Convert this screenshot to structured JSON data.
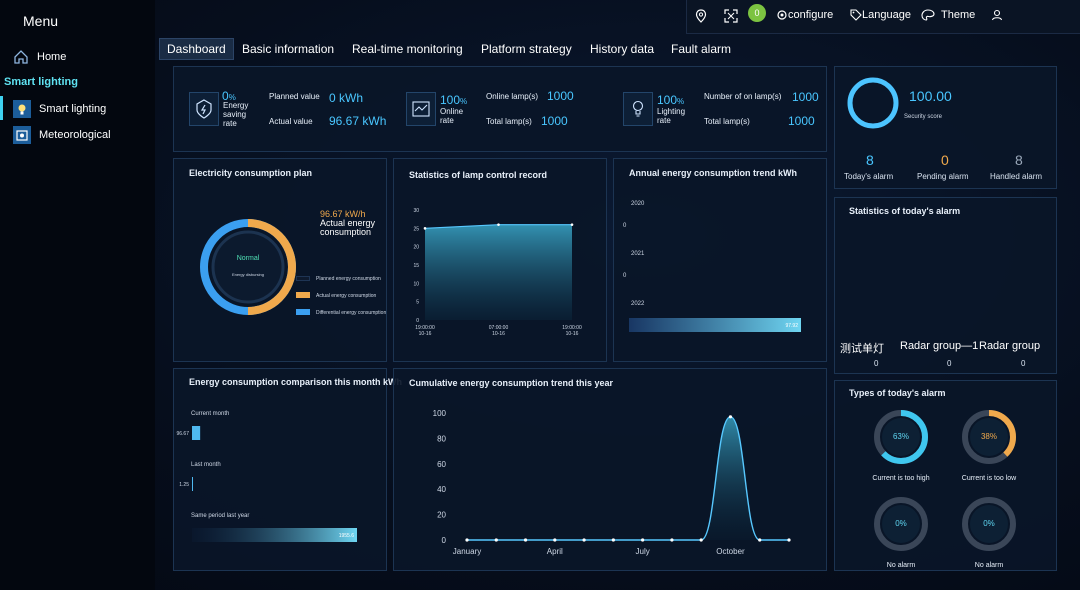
{
  "sidebar": {
    "title": "Menu",
    "home": "Home",
    "group": "Smart lighting",
    "items": [
      {
        "label": "Smart lighting"
      },
      {
        "label": "Meteorological"
      }
    ]
  },
  "topbar": {
    "badge": "0",
    "configure": "configure",
    "language": "Language",
    "theme": "Theme"
  },
  "tabs": [
    "Dashboard",
    "Basic information",
    "Real-time monitoring",
    "Platform strategy",
    "History data",
    "Fault alarm"
  ],
  "stats": {
    "energy": {
      "value": "0",
      "unit": "%",
      "label1": "Energy",
      "label2": "saving",
      "label3": "rate",
      "planned_label": "Planned value",
      "planned_value": "0 kWh",
      "actual_label": "Actual value",
      "actual_value": "96.67 kWh"
    },
    "online": {
      "value": "100",
      "unit": "%",
      "label1": "Online",
      "label2": "rate",
      "online_label": "Online lamp(s)",
      "online_value": "1000",
      "total_label": "Total lamp(s)",
      "total_value": "1000"
    },
    "lighting": {
      "value": "100",
      "unit": "%",
      "label1": "Lighting",
      "label2": "rate",
      "on_label": "Number of on lamp(s)",
      "on_value": "1000",
      "total_label": "Total lamp(s)",
      "total_value": "1000"
    }
  },
  "security": {
    "score": "100.00",
    "label": "Security score",
    "today_value": "8",
    "today_label": "Today's alarm",
    "pending_value": "0",
    "pending_label": "Pending alarm",
    "handled_value": "8",
    "handled_label": "Handled alarm"
  },
  "plan": {
    "title": "Electricity consumption plan",
    "value": "96.67 kW/h",
    "value_label1": "Actual energy",
    "value_label2": "consumption",
    "center_status": "Normal",
    "center_sub": "Energy disbursing",
    "legend": [
      "Planned energy consumption",
      "Actual energy consumption",
      "Differential energy consumption"
    ],
    "colors": {
      "planned": "#0e1a2e",
      "actual": "#f0a94c",
      "diff": "#3b9ff0"
    }
  },
  "lamp_record": {
    "title": "Statistics of lamp control record"
  },
  "annual": {
    "title": "Annual energy consumption trend kWh",
    "rows": [
      {
        "year": "2020",
        "value": "0"
      },
      {
        "year": "2021",
        "value": "0"
      },
      {
        "year": "2022",
        "value": "97.92"
      }
    ]
  },
  "alarm_stats": {
    "title": "Statistics of today's alarm",
    "groups": [
      {
        "name": "测试单灯",
        "count": "0"
      },
      {
        "name": "Radar group—1",
        "count": "0"
      },
      {
        "name": "Radar group",
        "count": "0"
      }
    ]
  },
  "comparison": {
    "title": "Energy consumption comparison this month kWh",
    "rows": [
      {
        "label": "Current month",
        "value": "96.67"
      },
      {
        "label": "Last month",
        "value": "1.25"
      },
      {
        "label": "Same period last year",
        "value": "1955.6"
      }
    ]
  },
  "cumulative": {
    "title": "Cumulative energy consumption trend this year"
  },
  "alarm_types": {
    "title": "Types of today's alarm",
    "items": [
      {
        "pct": "63%",
        "label": "Current is too high",
        "fraction": 0.63,
        "color": "#3fc7ef"
      },
      {
        "pct": "38%",
        "label": "Current is too low",
        "fraction": 0.38,
        "color": "#f0a94c"
      },
      {
        "pct": "0%",
        "label": "No alarm",
        "fraction": 0,
        "color": "#3fc7ef"
      },
      {
        "pct": "0%",
        "label": "No alarm",
        "fraction": 0,
        "color": "#3fc7ef"
      }
    ]
  },
  "chart_data": [
    {
      "type": "area",
      "title": "Statistics of lamp control record",
      "x": [
        "19:00:00\n10-16",
        "07:00:00\n10-16",
        "19:00:00\n10-16"
      ],
      "y_ticks": [
        0,
        5,
        10,
        15,
        20,
        25,
        30
      ],
      "ylim": [
        0,
        30
      ],
      "series": [
        {
          "values": [
            25,
            26,
            26
          ]
        }
      ]
    },
    {
      "type": "bar",
      "title": "Annual energy consumption trend kWh",
      "categories": [
        "2020",
        "2021",
        "2022"
      ],
      "values": [
        0,
        0,
        97.92
      ]
    },
    {
      "type": "bar",
      "title": "Energy consumption comparison this month kWh",
      "categories": [
        "Current month",
        "Last month",
        "Same period last year"
      ],
      "values": [
        96.67,
        1.25,
        1955.6
      ]
    },
    {
      "type": "area",
      "title": "Cumulative energy consumption trend this year",
      "x_ticks": [
        "January",
        "April",
        "July",
        "October"
      ],
      "y_ticks": [
        0,
        20,
        40,
        60,
        80,
        100
      ],
      "ylim": [
        0,
        100
      ],
      "series": [
        {
          "values": [
            0,
            0,
            0,
            0,
            0,
            0,
            0,
            0,
            0,
            97,
            0,
            0
          ]
        }
      ]
    }
  ]
}
